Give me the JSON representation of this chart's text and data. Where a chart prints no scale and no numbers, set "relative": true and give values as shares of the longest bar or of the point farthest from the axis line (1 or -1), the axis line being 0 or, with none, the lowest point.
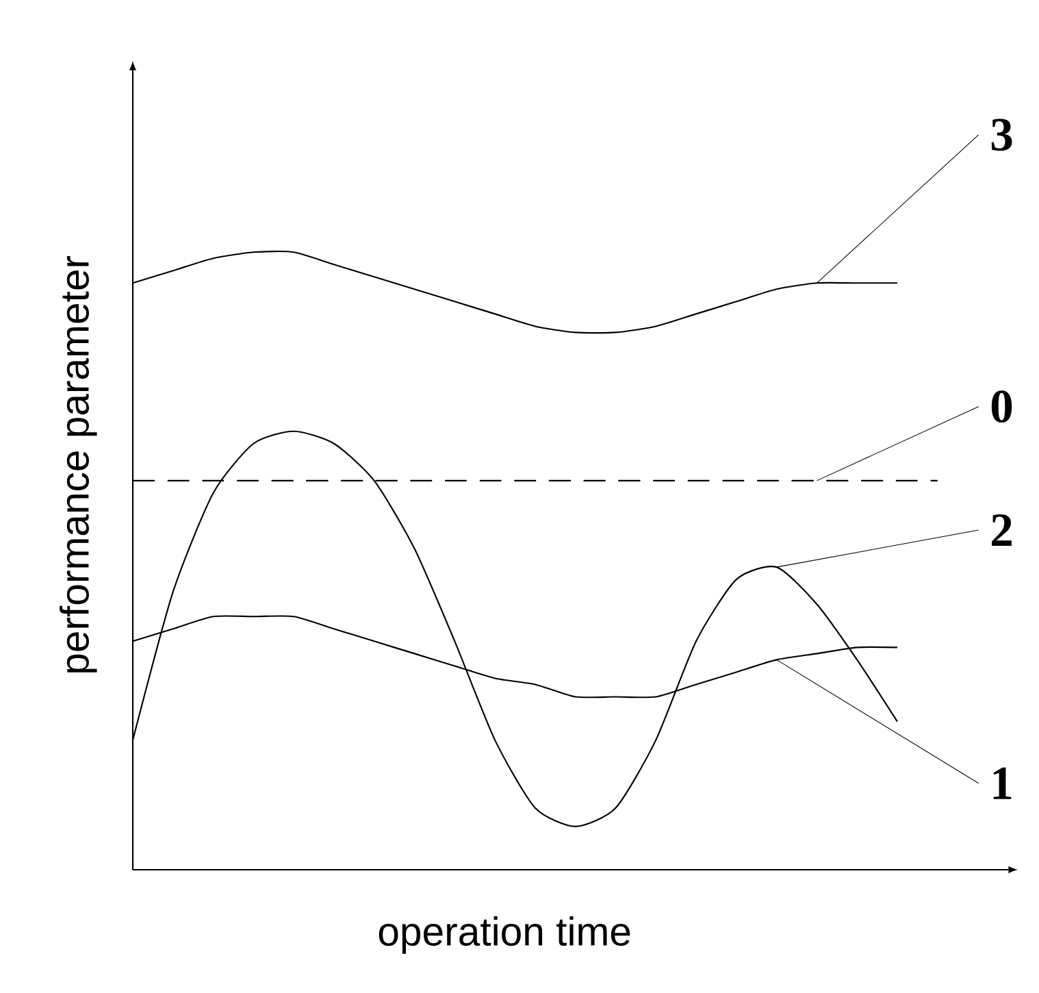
{
  "chart_data": {
    "type": "line",
    "relative": true,
    "xlabel": "operation time",
    "ylabel": "performance parameter",
    "categories": [
      null,
      null,
      null,
      null,
      null,
      null,
      null,
      null,
      null,
      null,
      null,
      null,
      null,
      null,
      null,
      null,
      null,
      null,
      null,
      null,
      null
    ],
    "series": [
      {
        "name": "3",
        "color": "#000000",
        "line_style": "solid",
        "values": [
          0.95,
          0.97,
          0.99,
          1.0,
          1.0,
          0.98,
          0.96,
          0.94,
          0.92,
          0.9,
          0.88,
          0.87,
          0.87,
          0.88,
          0.9,
          0.92,
          0.94,
          0.95,
          0.95,
          0.95,
          null
        ]
      },
      {
        "name": "0",
        "color": "#000000",
        "line_style": "dashed",
        "values": [
          0.63,
          0.63,
          0.63,
          0.63,
          0.63,
          0.63,
          0.63,
          0.63,
          0.63,
          0.63,
          0.63,
          0.63,
          0.63,
          0.63,
          0.63,
          0.63,
          0.63,
          0.63,
          0.63,
          0.63,
          0.63
        ]
      },
      {
        "name": "2",
        "color": "#000000",
        "line_style": "solid",
        "values": [
          0.21,
          0.45,
          0.61,
          0.69,
          0.71,
          0.69,
          0.63,
          0.52,
          0.37,
          0.21,
          0.1,
          0.07,
          0.1,
          0.21,
          0.37,
          0.47,
          0.49,
          0.43,
          0.34,
          0.24,
          null
        ]
      },
      {
        "name": "1",
        "color": "#000000",
        "line_style": "solid",
        "values": [
          0.37,
          0.39,
          0.41,
          0.41,
          0.41,
          0.39,
          0.37,
          0.35,
          0.33,
          0.31,
          0.3,
          0.28,
          0.28,
          0.28,
          0.3,
          0.32,
          0.34,
          0.35,
          0.36,
          0.36,
          null
        ]
      }
    ]
  }
}
